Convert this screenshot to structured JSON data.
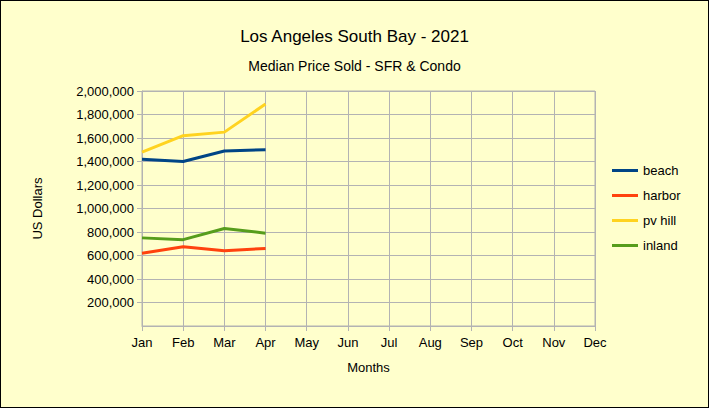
{
  "chart_data": {
    "type": "line",
    "title": "Los Angeles South Bay - 2021",
    "subtitle": "Median Price Sold - SFR & Condo",
    "x_label": "Months",
    "y_label": "US Dollars",
    "categories": [
      "Jan",
      "Feb",
      "Mar",
      "Apr",
      "May",
      "Jun",
      "Jul",
      "Aug",
      "Sep",
      "Oct",
      "Nov",
      "Dec"
    ],
    "series": [
      {
        "name": "beach",
        "color": "#004586",
        "values": [
          1420000,
          1400000,
          1490000,
          1500000,
          null,
          null,
          null,
          null,
          null,
          null,
          null,
          null
        ]
      },
      {
        "name": "harbor",
        "color": "#ff420e",
        "values": [
          620000,
          675000,
          640000,
          660000,
          null,
          null,
          null,
          null,
          null,
          null,
          null,
          null
        ]
      },
      {
        "name": "pv hill",
        "color": "#ffd320",
        "values": [
          1480000,
          1620000,
          1650000,
          1890000,
          null,
          null,
          null,
          null,
          null,
          null,
          null,
          null
        ]
      },
      {
        "name": "inland",
        "color": "#579d1c",
        "values": [
          750000,
          735000,
          830000,
          790000,
          null,
          null,
          null,
          null,
          null,
          null,
          null,
          null
        ]
      }
    ],
    "ylim": [
      0,
      2000000
    ],
    "yticks": [
      {
        "value": 200000,
        "label": "200,000"
      },
      {
        "value": 400000,
        "label": "400,000"
      },
      {
        "value": 600000,
        "label": "600,000"
      },
      {
        "value": 800000,
        "label": "800,000"
      },
      {
        "value": 1000000,
        "label": "1,000,000"
      },
      {
        "value": 1200000,
        "label": "1,200,000"
      },
      {
        "value": 1400000,
        "label": "1,400,000"
      },
      {
        "value": 1600000,
        "label": "1,600,000"
      },
      {
        "value": 1800000,
        "label": "1,800,000"
      },
      {
        "value": 2000000,
        "label": "2,000,000"
      }
    ],
    "grid": true,
    "legend": "right"
  }
}
